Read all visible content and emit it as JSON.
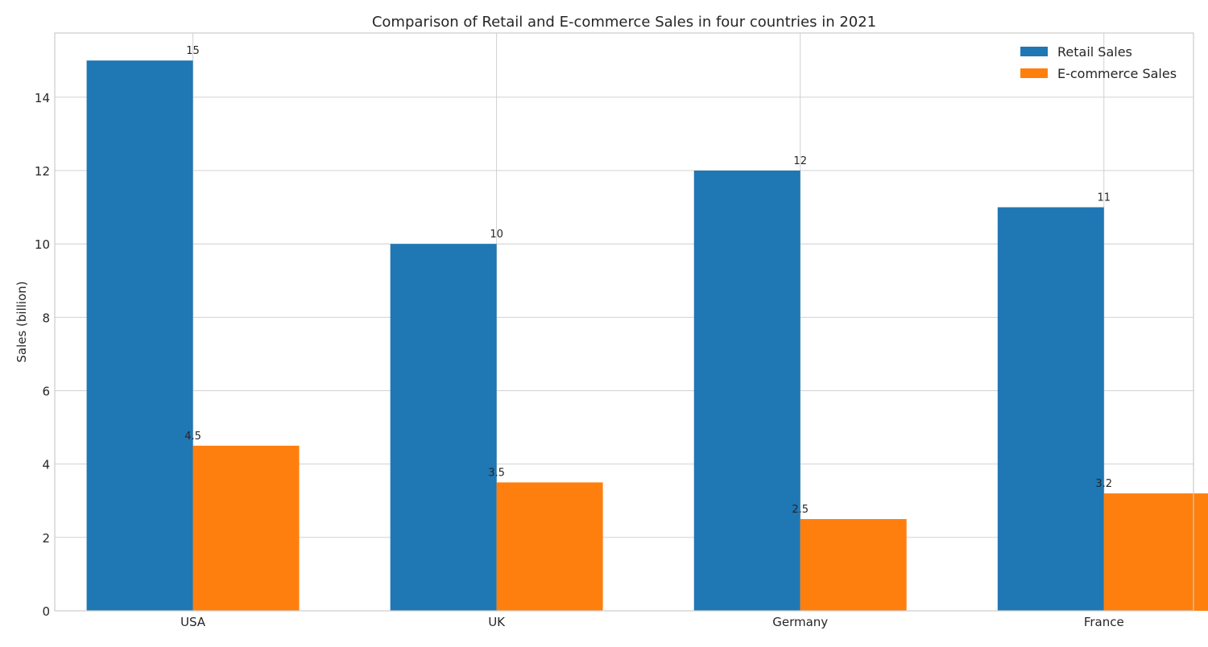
{
  "chart_data": {
    "type": "bar",
    "title": "Comparison of Retail and E-commerce Sales in four countries in 2021",
    "xlabel": "",
    "ylabel": "Sales (billion)",
    "categories": [
      "USA",
      "UK",
      "Germany",
      "France"
    ],
    "series": [
      {
        "name": "Retail Sales",
        "values": [
          15,
          10,
          12,
          11
        ],
        "labels": [
          "15",
          "10",
          "12",
          "11"
        ],
        "color": "#1f77b4"
      },
      {
        "name": "E-commerce Sales",
        "values": [
          4.5,
          3.5,
          2.5,
          3.2
        ],
        "labels": [
          "4.5",
          "3.5",
          "2.5",
          "3.2"
        ],
        "color": "#ff7f0e"
      }
    ],
    "ylim": [
      0,
      15.75
    ],
    "yticks": [
      0,
      2,
      4,
      6,
      8,
      10,
      12,
      14
    ],
    "grid": true,
    "legend_position": "top-right"
  }
}
